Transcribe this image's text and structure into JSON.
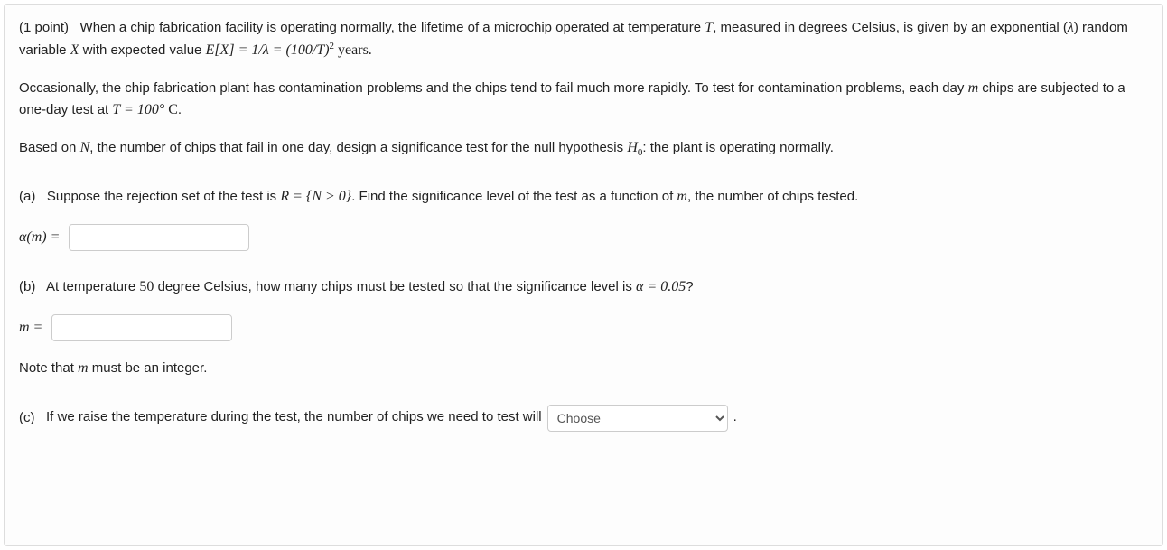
{
  "colors": {
    "text": "#222222",
    "border": "#dddddd",
    "input_border": "#cccccc",
    "background": "#fdfdfd"
  },
  "header": {
    "points": "(1 point)",
    "intro_part1": "When a chip fabrication facility is operating normally, the lifetime of a microchip operated at temperature ",
    "var_T": "T",
    "intro_part2": ", measured in degrees Celsius, is given by an exponential (",
    "var_lambda": "λ",
    "intro_part3": ") random variable ",
    "var_X": "X",
    "intro_part4": " with expected value ",
    "eq_EX": "E[X] = 1/λ = (100/T)",
    "eq_exp": "2",
    "eq_units": " years."
  },
  "para2": {
    "part1": "Occasionally, the chip fabrication plant has contamination problems and the chips tend to fail much more rapidly. To test for contamination problems, each day ",
    "var_m": "m",
    "part2": " chips are subjected to a one-day test at ",
    "eq_T": "T = 100°",
    "eq_C": " C",
    "period": "."
  },
  "para3": {
    "part1": "Based on ",
    "var_N": "N",
    "part2": ", the number of chips that fail in one day, design a significance test for the null hypothesis ",
    "var_H0": "H",
    "sub0": "0",
    "part3": ":   the plant is operating normally."
  },
  "partA": {
    "label": "(a)",
    "text1": "Suppose the rejection set of the test is ",
    "eq_R": "R = {N > 0}",
    "text2": ". Find the significance level of the test as a function of ",
    "var_m": "m",
    "text3": ", the number of chips tested.",
    "answer_label": "α(m) ="
  },
  "partB": {
    "label": "(b)",
    "text1": "At temperature ",
    "val_50": "50",
    "text2": " degree Celsius, how many chips must be tested so that the significance level is ",
    "eq_alpha": "α = 0.05",
    "q": "?",
    "answer_label": "m =",
    "note": "Note that ",
    "note_var": "m",
    "note2": " must be an integer."
  },
  "partC": {
    "label": "(c)",
    "text1": "If we raise the temperature during the test, the number of chips we need to test will",
    "select_placeholder": "Choose",
    "period": "."
  }
}
